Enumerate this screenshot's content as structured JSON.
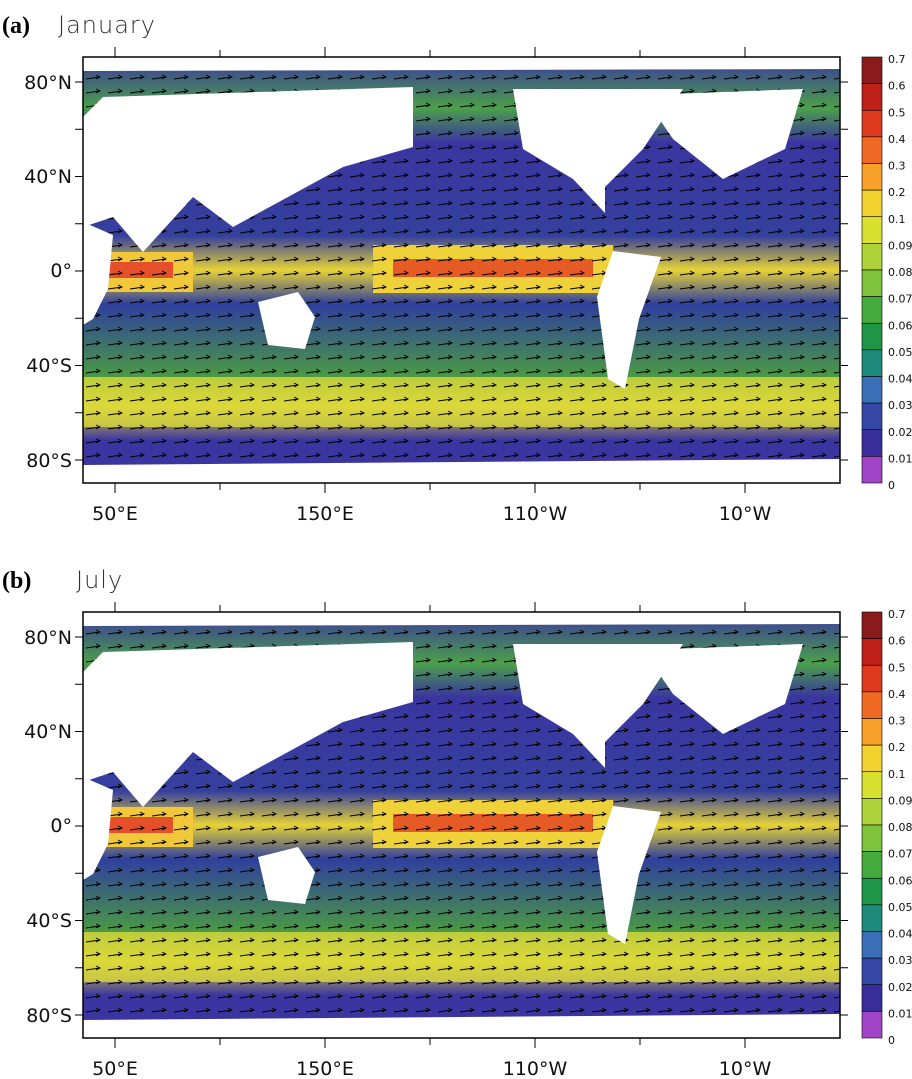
{
  "panels": [
    {
      "label": "(a)",
      "title": "January",
      "y_labels": [
        "80°N",
        "40°N",
        "0°",
        "40°S",
        "80°S"
      ],
      "x_labels": [
        "50°E",
        "150°E",
        "110°W",
        "10°W"
      ]
    },
    {
      "label": "(b)",
      "title": "July",
      "y_labels": [
        "80°N",
        "40°N",
        "0°",
        "40°S",
        "80°S"
      ],
      "x_labels": [
        "50°E",
        "150°E",
        "110°W",
        "10°W"
      ]
    }
  ],
  "colorbar": {
    "levels": [
      0.7,
      0.6,
      0.5,
      0.4,
      0.3,
      0.2,
      0.1,
      0.09,
      0.08,
      0.07,
      0.06,
      0.05,
      0.04,
      0.03,
      0.02,
      0.01,
      0
    ],
    "colors": [
      "#8b1a1a",
      "#c0201a",
      "#e03a1e",
      "#f06a25",
      "#f7a02a",
      "#f2d22e",
      "#d8e030",
      "#aed33a",
      "#7fc23b",
      "#46ab3e",
      "#1f9548",
      "#1e8a7c",
      "#3a6fb8",
      "#3548a6",
      "#3a2e9a",
      "#a045c8"
    ]
  }
}
